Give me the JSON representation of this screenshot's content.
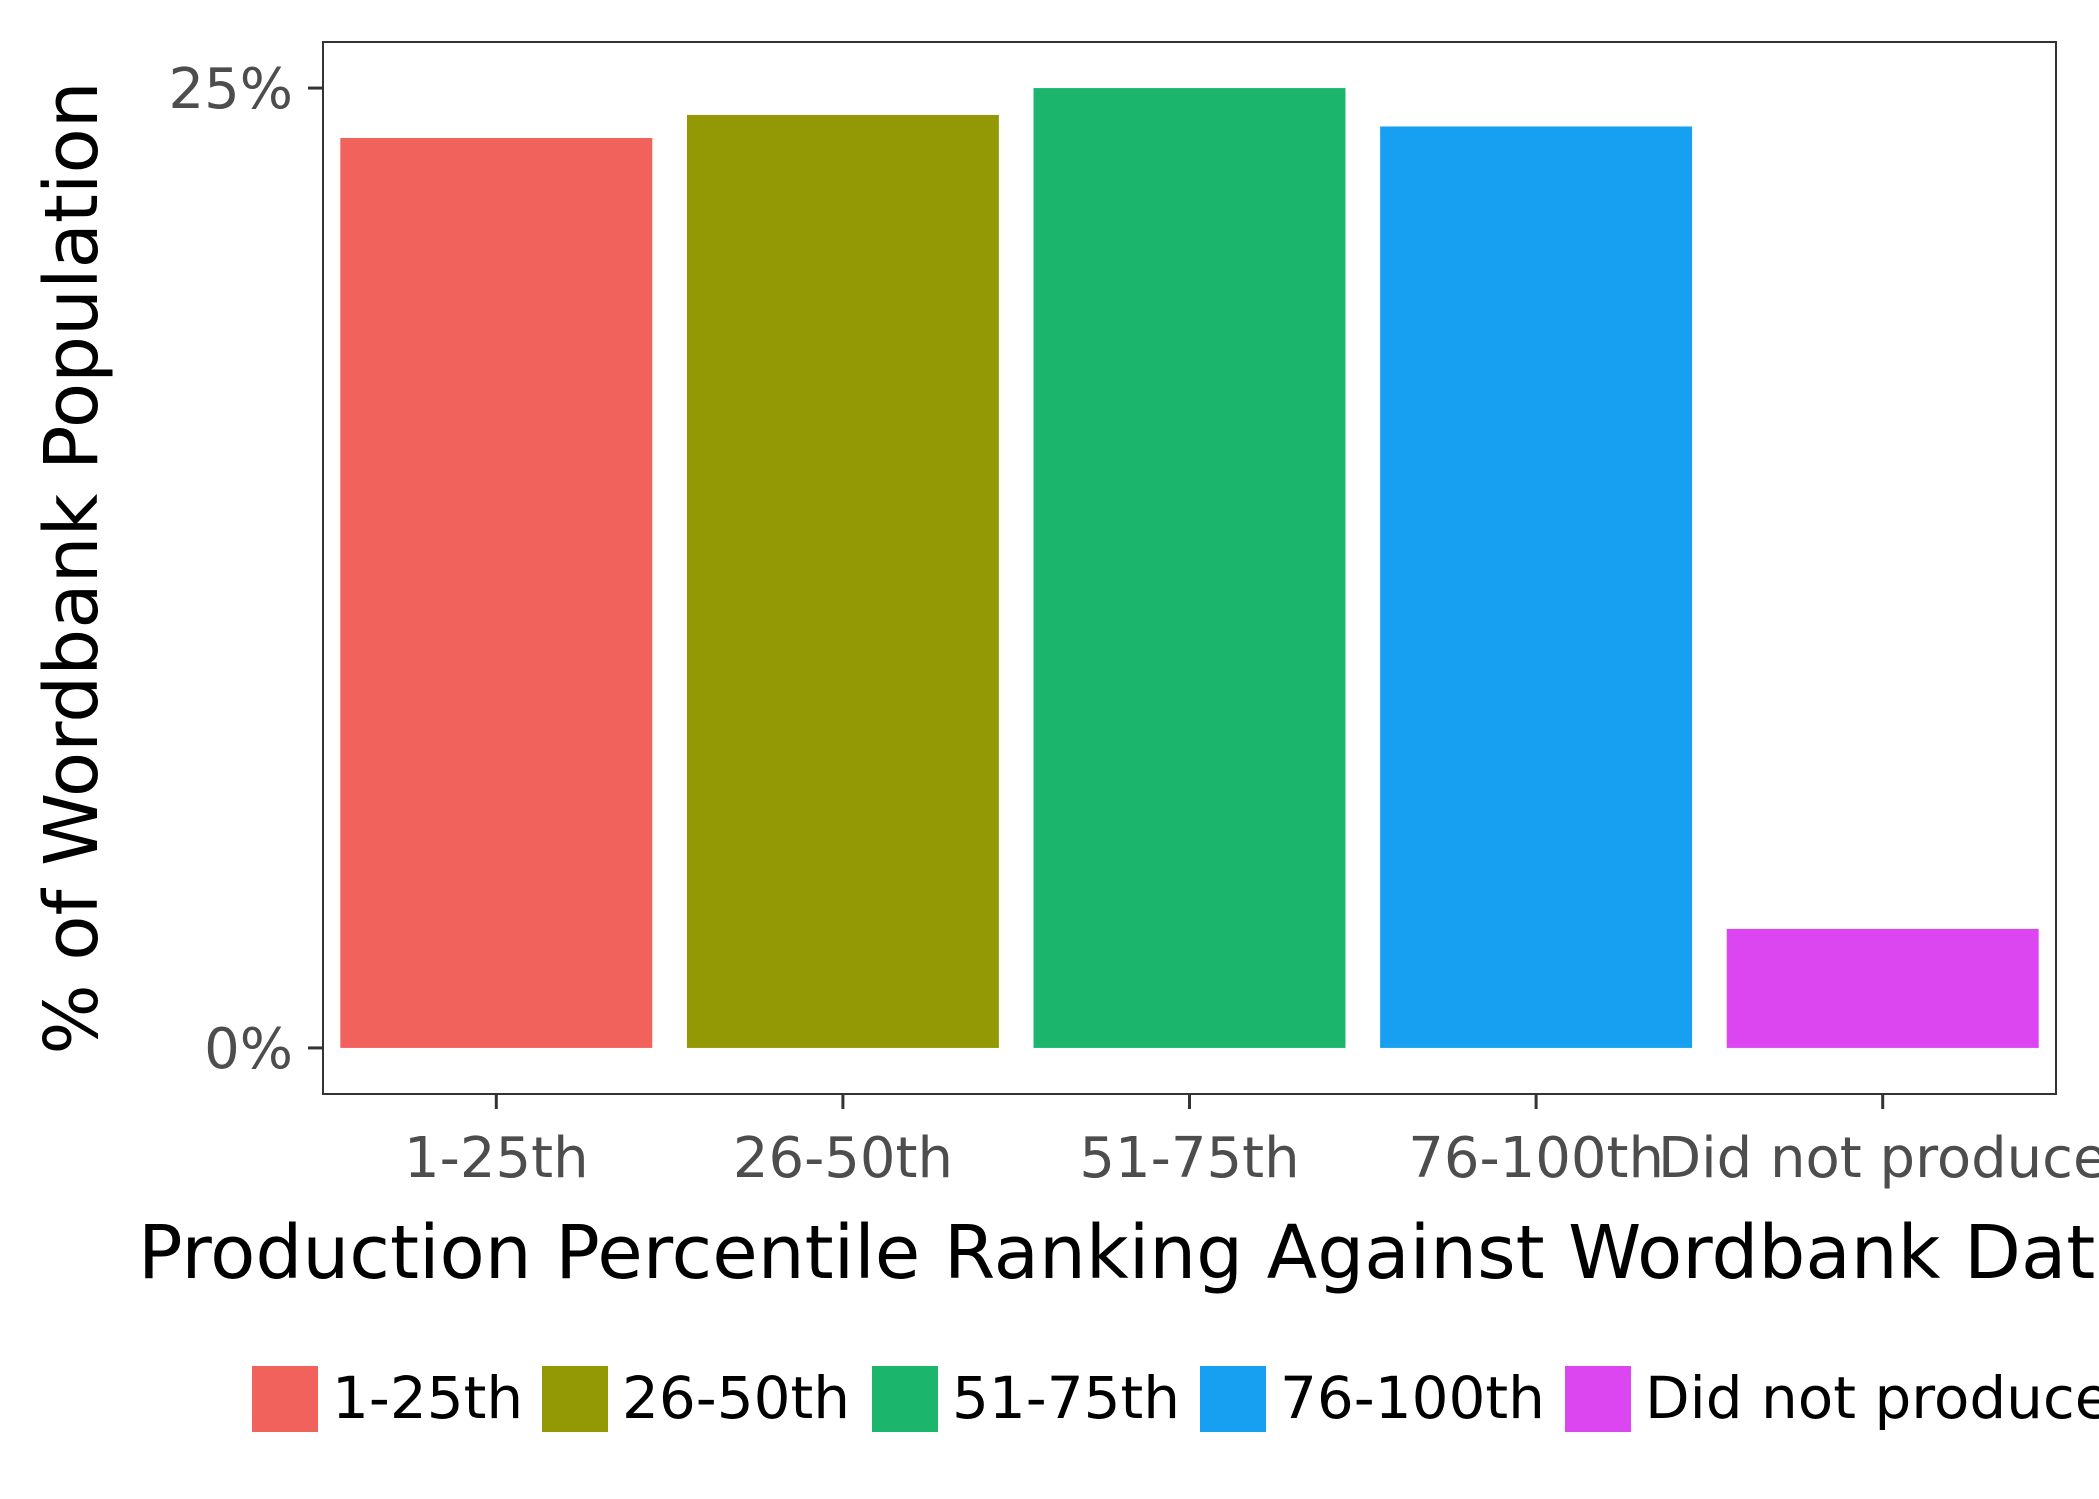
{
  "chart_data": {
    "type": "bar",
    "categories": [
      "1-25th",
      "26-50th",
      "51-75th",
      "76-100th",
      "Did not produce"
    ],
    "values": [
      23.7,
      24.3,
      25.0,
      24.0,
      3.1
    ],
    "colors": [
      "#F2625C",
      "#939905",
      "#1BB56B",
      "#179FF2",
      "#DC46F0"
    ],
    "xlabel": "Production Percentile Ranking Against Wordbank Data",
    "ylabel": "% of Wordbank Population",
    "ylim": [
      -1.2,
      26.2
    ],
    "y_ticks": [
      {
        "value": 0,
        "label": "0%"
      },
      {
        "value": 25,
        "label": "25%"
      }
    ],
    "grid": false,
    "legend": {
      "position": "bottom",
      "entries": [
        "1-25th",
        "26-50th",
        "51-75th",
        "76-100th",
        "Did not produce"
      ]
    }
  }
}
